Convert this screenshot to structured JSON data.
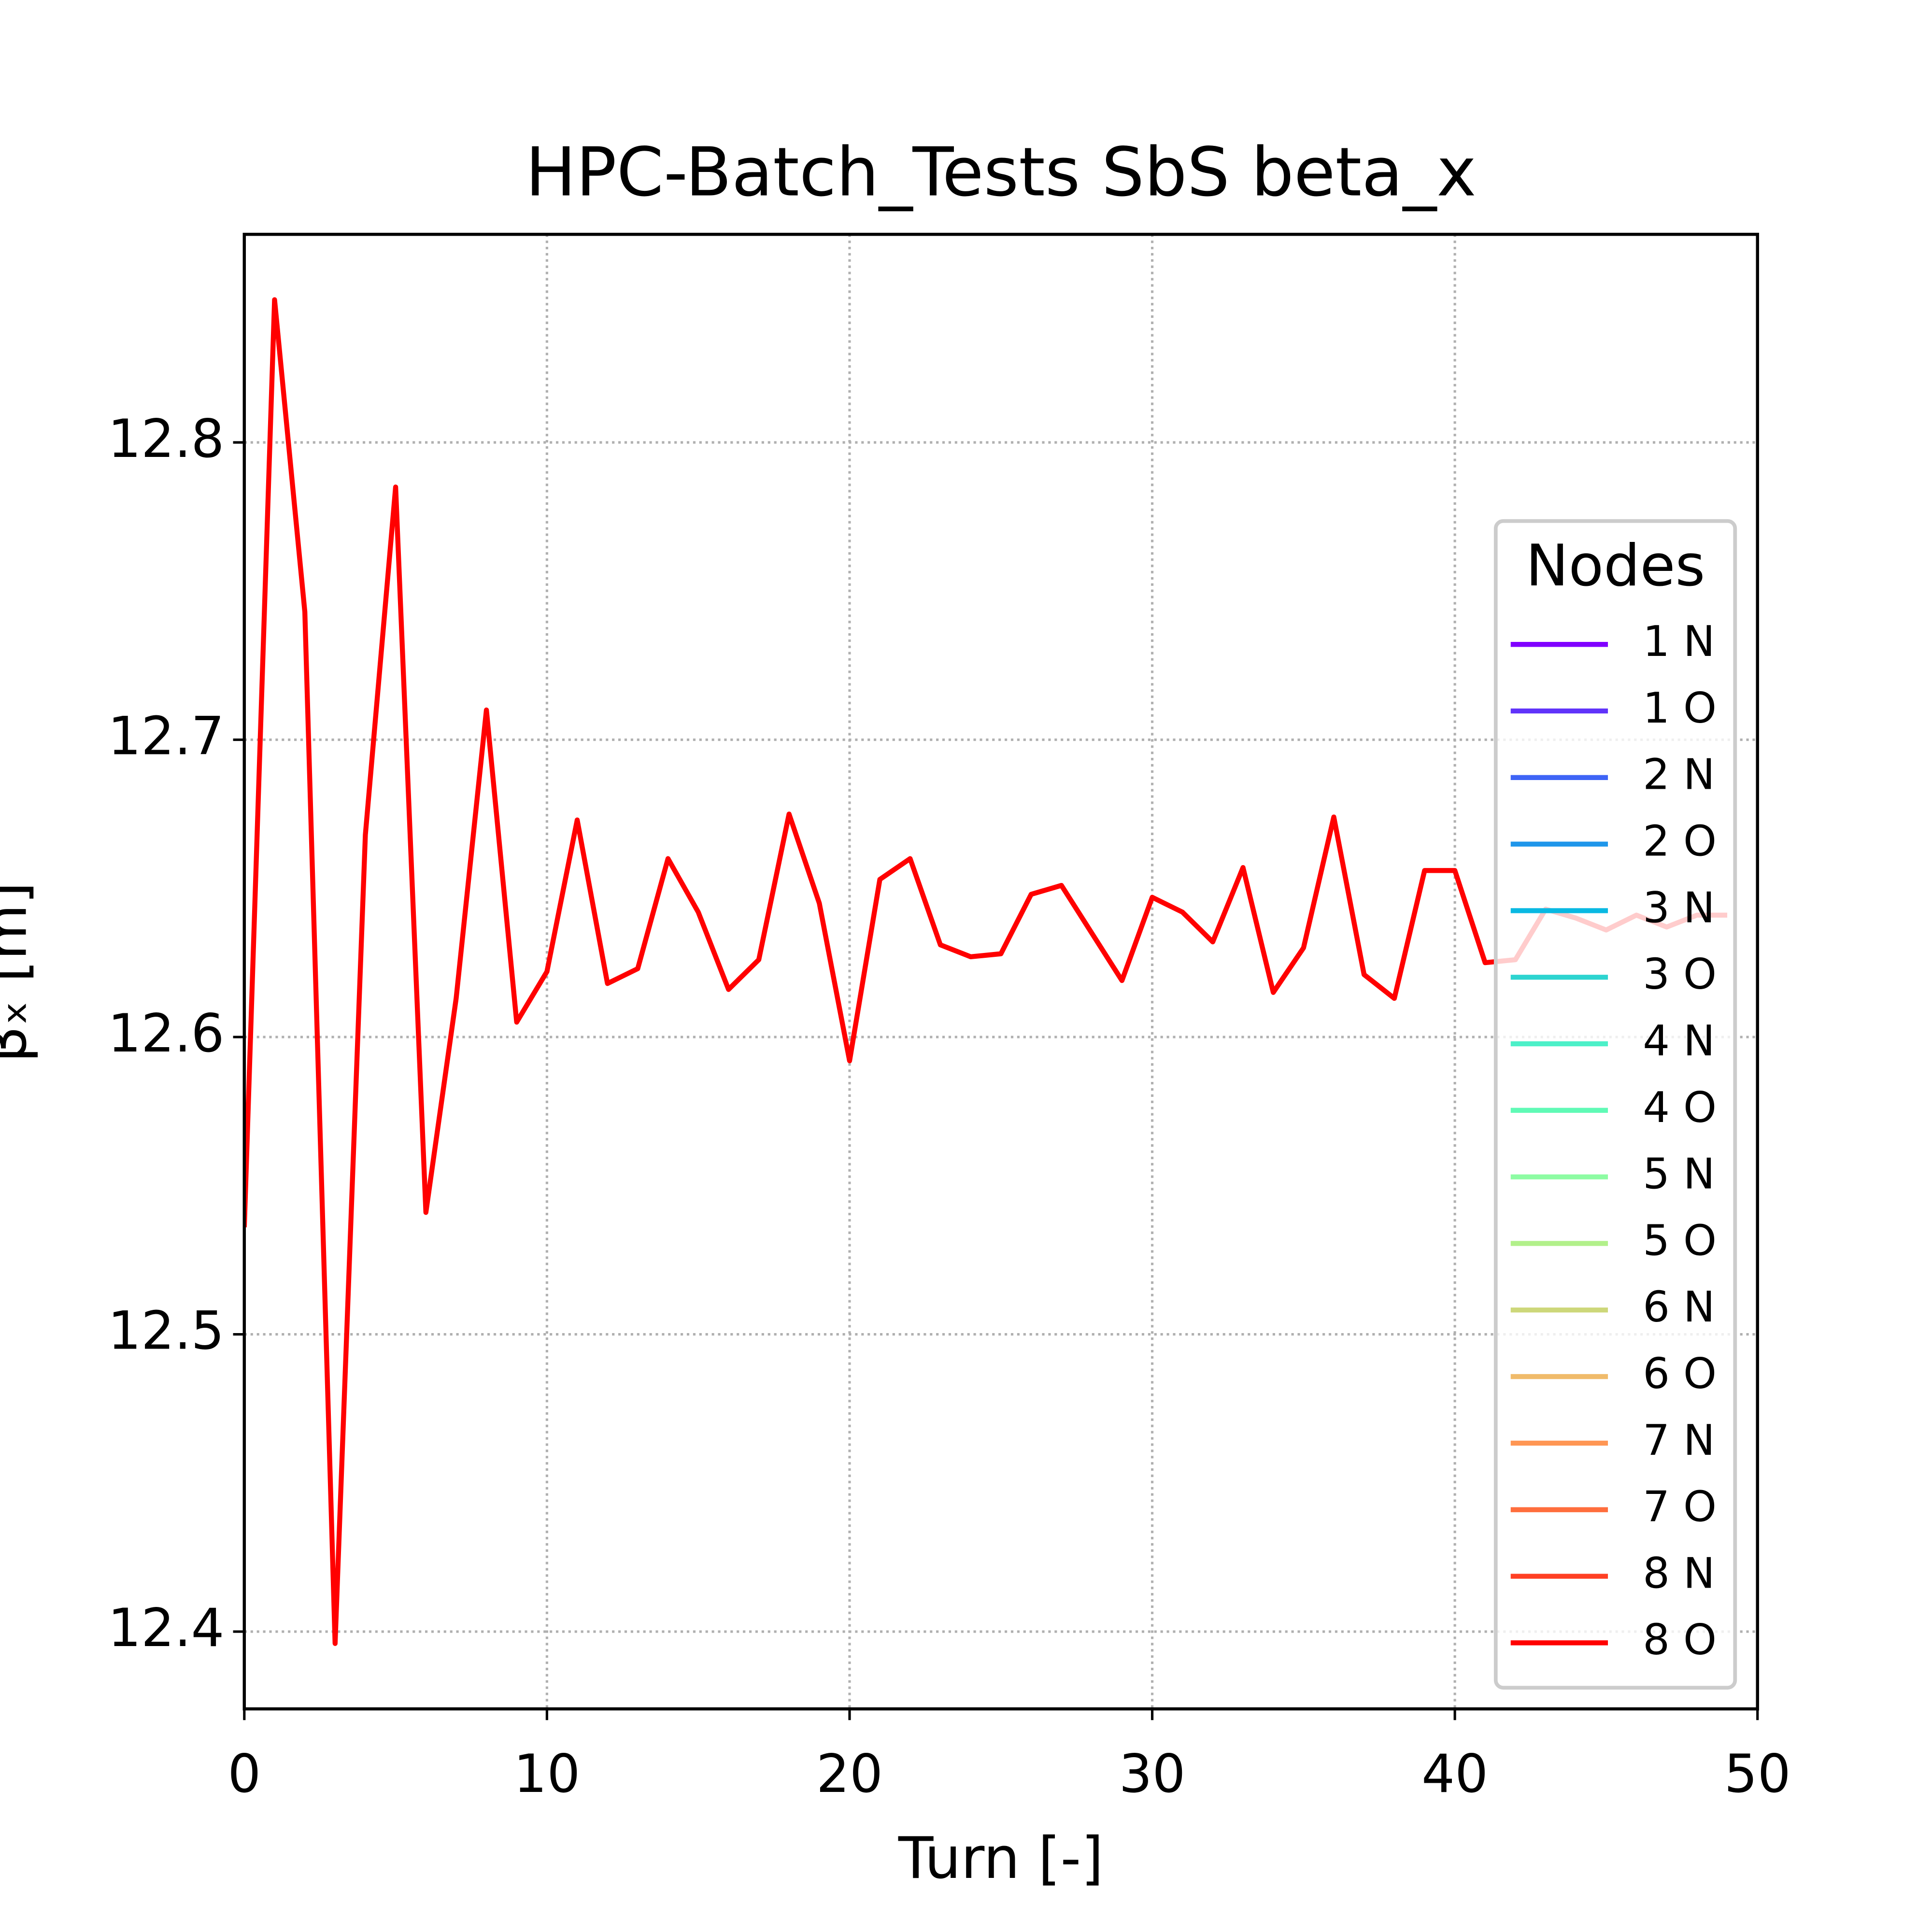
{
  "chart_data": {
    "type": "line",
    "title": "HPC-Batch_Tests SbS beta_x",
    "xlabel": "Turn [-]",
    "ylabel": "βₓ [m]",
    "x": [
      0,
      1,
      2,
      3,
      4,
      5,
      6,
      7,
      8,
      9,
      10,
      11,
      12,
      13,
      14,
      15,
      16,
      17,
      18,
      19,
      20,
      21,
      22,
      23,
      24,
      25,
      26,
      27,
      28,
      29,
      30,
      31,
      32,
      33,
      34,
      35,
      36,
      37,
      38,
      39,
      40,
      41,
      42,
      43,
      44,
      45,
      46,
      47,
      48,
      49
    ],
    "series": [
      {
        "name": "1 N",
        "color": "#8000ff"
      },
      {
        "name": "1 O",
        "color": "#6033fa"
      },
      {
        "name": "2 N",
        "color": "#3e64f6"
      },
      {
        "name": "2 O",
        "color": "#1f96ea"
      },
      {
        "name": "3 N",
        "color": "#0ab9e2"
      },
      {
        "name": "3 O",
        "color": "#2dd4d0"
      },
      {
        "name": "4 N",
        "color": "#4cf0c8"
      },
      {
        "name": "4 O",
        "color": "#60fab6"
      },
      {
        "name": "5 N",
        "color": "#8dfca3"
      },
      {
        "name": "5 O",
        "color": "#b2f08a"
      },
      {
        "name": "6 N",
        "color": "#cdd77a"
      },
      {
        "name": "6 O",
        "color": "#f0bb6b"
      },
      {
        "name": "7 N",
        "color": "#ff9653"
      },
      {
        "name": "7 O",
        "color": "#ff6e3d"
      },
      {
        "name": "8 N",
        "color": "#ff4024"
      },
      {
        "name": "8 O",
        "color": "#ff0000",
        "values": [
          12.536,
          12.848,
          12.743,
          12.396,
          12.668,
          12.785,
          12.541,
          12.613,
          12.71,
          12.605,
          12.622,
          12.673,
          12.618,
          12.623,
          12.66,
          12.642,
          12.616,
          12.626,
          12.675,
          12.645,
          12.592,
          12.653,
          12.66,
          12.631,
          12.627,
          12.628,
          12.648,
          12.651,
          12.635,
          12.619,
          12.647,
          12.642,
          12.632,
          12.657,
          12.615,
          12.63,
          12.674,
          12.621,
          12.613,
          12.656,
          12.656,
          12.625,
          12.626,
          12.643,
          12.64,
          12.636,
          12.641,
          12.637,
          12.641,
          12.641
        ]
      }
    ],
    "legend_title": "Nodes",
    "legend": "center right",
    "xlim": [
      0,
      50
    ],
    "xticks": [
      0,
      10,
      20,
      30,
      40,
      50
    ],
    "ylim": [
      12.374,
      12.87
    ],
    "yticks": [
      12.4,
      12.5,
      12.6,
      12.7,
      12.8
    ],
    "grid": true
  }
}
